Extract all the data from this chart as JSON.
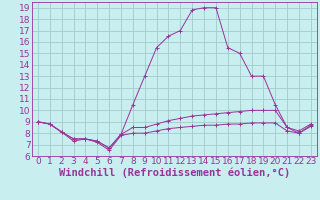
{
  "xlabel": "Windchill (Refroidissement éolien,°C)",
  "background_color": "#c8eef0",
  "grid_color": "#a0ccc8",
  "line_color": "#993399",
  "xlim": [
    -0.5,
    23.5
  ],
  "ylim": [
    6,
    19.5
  ],
  "xticks": [
    0,
    1,
    2,
    3,
    4,
    5,
    6,
    7,
    8,
    9,
    10,
    11,
    12,
    13,
    14,
    15,
    16,
    17,
    18,
    19,
    20,
    21,
    22,
    23
  ],
  "yticks": [
    6,
    7,
    8,
    9,
    10,
    11,
    12,
    13,
    14,
    15,
    16,
    17,
    18,
    19
  ],
  "line1_x": [
    0,
    1,
    2,
    3,
    4,
    5,
    6,
    7,
    8,
    9,
    10,
    11,
    12,
    13,
    14,
    15,
    16,
    17,
    18,
    19,
    20,
    21,
    22,
    23
  ],
  "line1_y": [
    9.0,
    8.8,
    8.1,
    7.3,
    7.5,
    7.2,
    6.5,
    7.8,
    8.0,
    8.0,
    8.2,
    8.4,
    8.5,
    8.6,
    8.7,
    8.7,
    8.8,
    8.8,
    8.9,
    8.9,
    8.9,
    8.2,
    8.0,
    8.6
  ],
  "line2_x": [
    0,
    1,
    2,
    3,
    4,
    5,
    6,
    7,
    8,
    9,
    10,
    11,
    12,
    13,
    14,
    15,
    16,
    17,
    18,
    19,
    20,
    21,
    22,
    23
  ],
  "line2_y": [
    9.0,
    8.8,
    8.1,
    7.5,
    7.5,
    7.3,
    6.7,
    7.9,
    8.5,
    8.5,
    8.8,
    9.1,
    9.3,
    9.5,
    9.6,
    9.7,
    9.8,
    9.9,
    10.0,
    10.0,
    10.0,
    8.5,
    8.2,
    8.8
  ],
  "line3_x": [
    0,
    1,
    2,
    3,
    4,
    5,
    6,
    7,
    8,
    9,
    10,
    11,
    12,
    13,
    14,
    15,
    16,
    17,
    18,
    19,
    20,
    21,
    22,
    23
  ],
  "line3_y": [
    9.0,
    8.8,
    8.1,
    7.5,
    7.5,
    7.3,
    6.7,
    7.9,
    10.5,
    13.0,
    15.5,
    16.5,
    17.0,
    18.8,
    19.0,
    19.0,
    15.5,
    15.0,
    13.0,
    13.0,
    10.5,
    8.5,
    8.0,
    8.7
  ],
  "tick_fontsize": 6.5,
  "label_fontsize": 7.5
}
